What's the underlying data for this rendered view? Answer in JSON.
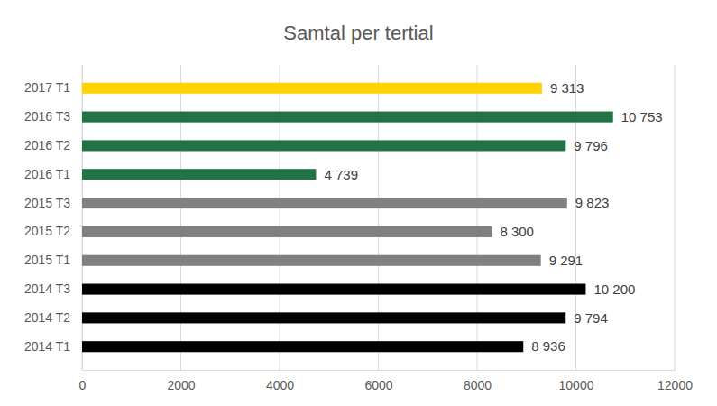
{
  "chart_data": {
    "type": "bar",
    "orientation": "horizontal",
    "title": "Samtal per tertial",
    "categories": [
      "2014 T1",
      "2014 T2",
      "2014 T3",
      "2015 T1",
      "2015 T2",
      "2015 T3",
      "2016 T1",
      "2016 T2",
      "2016 T3",
      "2017 T1"
    ],
    "values": [
      8936,
      9794,
      10200,
      9291,
      8300,
      9823,
      4739,
      9796,
      10753,
      9313
    ],
    "value_labels": [
      "8 936",
      "9 794",
      "10 200",
      "9 291",
      "8 300",
      "9 823",
      "4 739",
      "9 796",
      "10 753",
      "9 313"
    ],
    "colors": [
      "#000000",
      "#000000",
      "#000000",
      "#808080",
      "#808080",
      "#808080",
      "#217346",
      "#217346",
      "#217346",
      "#ffd200"
    ],
    "xlim": [
      0,
      12000
    ],
    "xticks": [
      0,
      2000,
      4000,
      6000,
      8000,
      10000,
      12000
    ],
    "grid": true,
    "data_labels": true
  }
}
